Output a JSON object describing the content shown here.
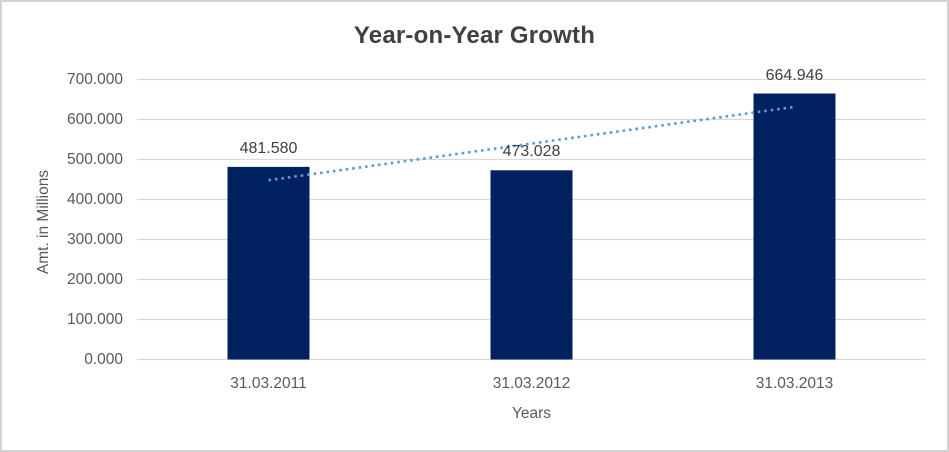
{
  "chart_data": {
    "type": "bar",
    "title": "Year-on-Year Growth",
    "xlabel": "Years",
    "ylabel": "Amt. in Millions",
    "categories": [
      "31.03.2011",
      "31.03.2012",
      "31.03.2013"
    ],
    "values": [
      481.58,
      473.028,
      664.946
    ],
    "data_labels": [
      "481.580",
      "473.028",
      "664.946"
    ],
    "ytick_labels": [
      "0.000",
      "100.000",
      "200.000",
      "300.000",
      "400.000",
      "500.000",
      "600.000",
      "700.000"
    ],
    "ylim": [
      0,
      700
    ],
    "ytick_step": 100,
    "grid": true,
    "legend": false,
    "trendline": {
      "type": "linear",
      "style": "dotted",
      "start_value": 448.2,
      "end_value": 631.5
    },
    "colors": {
      "bar": "#002060",
      "trendline": "#5B9BD5",
      "gridline": "#D9D9D9",
      "title_text": "#404040",
      "axis_text": "#595959",
      "data_label_text": "#404040",
      "border": "#D3D3D3"
    }
  }
}
